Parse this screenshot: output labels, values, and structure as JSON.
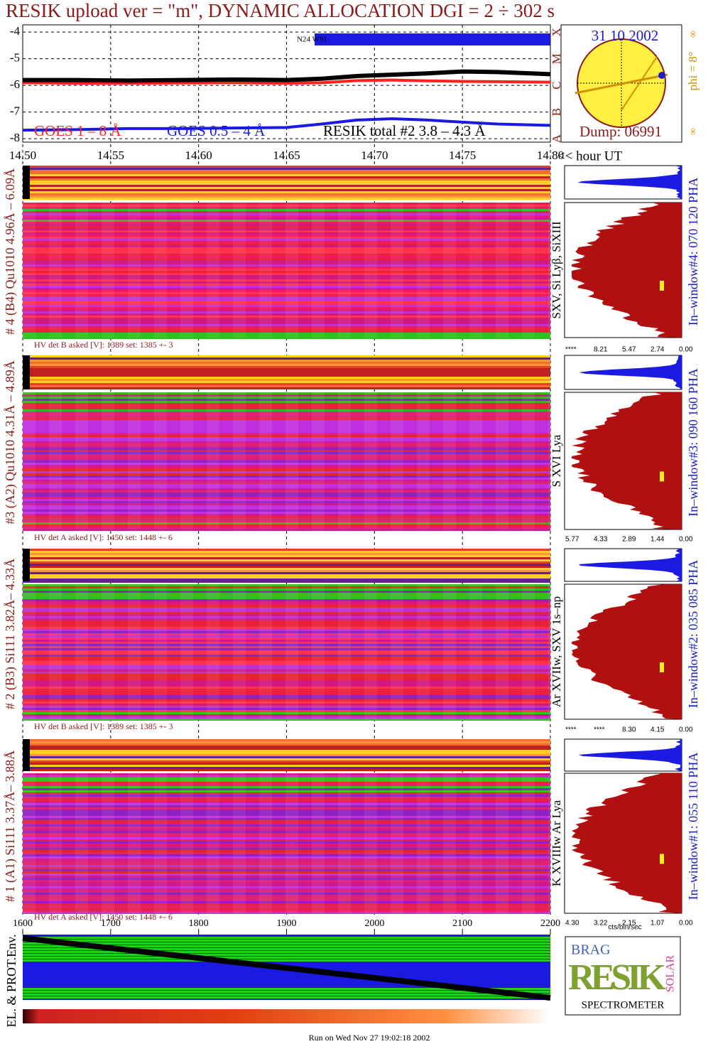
{
  "title": "RESIK upload ver = \"m\", DYNAMIC ALLOCATION  DGI =   2 ÷ 302 s",
  "goes_plot": {
    "xlim": [
      14.5,
      14.8
    ],
    "xticks": [
      {
        "value": 14.5,
        "label": "14.50"
      },
      14.55,
      {
        "value": 14.6,
        "label": "14.60"
      },
      14.65,
      {
        "value": 14.7,
        "label": "14.70"
      },
      14.75,
      {
        "value": 14.8,
        "label": "14.80"
      }
    ],
    "x_label": "<< hour UT",
    "ylim": [
      -8.13,
      -3.73
    ],
    "yticks": [
      -4,
      -5,
      -6,
      -7,
      -8
    ],
    "class_letters": [
      "A",
      "B",
      "C",
      "M",
      "X"
    ],
    "annotation": "N24 W91",
    "x": [
      14.5,
      14.53,
      14.56,
      14.59,
      14.62,
      14.65,
      14.67,
      14.69,
      14.71,
      14.73,
      14.75,
      14.77,
      14.8
    ],
    "series": [
      {
        "name": "GOES 1 – 8 Å",
        "color": "#ff2020",
        "values": [
          -5.9,
          -5.92,
          -5.92,
          -5.91,
          -5.9,
          -5.92,
          -5.9,
          -5.82,
          -5.8,
          -5.83,
          -5.85,
          -5.86,
          -5.88
        ]
      },
      {
        "name": "GOES 0.5 – 4 Å",
        "color": "#1a1ae0",
        "values": [
          -7.68,
          -7.66,
          -7.62,
          -7.62,
          -7.6,
          -7.58,
          -7.45,
          -7.3,
          -7.25,
          -7.3,
          -7.38,
          -7.45,
          -7.5
        ]
      },
      {
        "name": "RESIK total #2  3.8 – 4.3 Å",
        "color": "#000000",
        "values": [
          -5.8,
          -5.8,
          -5.82,
          -5.8,
          -5.78,
          -5.8,
          -5.75,
          -5.65,
          -5.6,
          -5.55,
          -5.48,
          -5.5,
          -5.58
        ]
      }
    ]
  },
  "sun": {
    "date": "31 10 2002",
    "dump": "Dump: 06991",
    "phi": "phi =  8°",
    "marks": [
      "∞",
      "∞"
    ]
  },
  "detectors": [
    {
      "label": "# 4 (B4) Qu1010 4.96Å – 6.09Å",
      "lines": "SXV, Si Lyβ, SiXIII",
      "window": "In–window#4:  070 120 PHA",
      "hv": "HV det B asked [V]:  1389 set:  1385 +-    3",
      "hist_ticks": [
        "****",
        "8.21",
        "5.47",
        "2.74",
        "0.00"
      ]
    },
    {
      "label": "#3 (A2) Qu1010  4.31Å – 4.89Å",
      "lines": "S XVI Lya",
      "window": "In–window#3:  090 160 PHA",
      "hv": "HV det A asked [V]:  1450 set:  1448 +-    6",
      "hist_ticks": [
        "5.77",
        "4.33",
        "2.89",
        "1.44",
        "0.00"
      ]
    },
    {
      "label": "# 2 (B3) Si111  3.82Å– 4.33Å",
      "lines": "Ar XVIIw,  SXV 1s–np",
      "window": "In–window#2:  035 085 PHA",
      "hv": "HV det B asked [V]:  1389 set:  1385 +-    3",
      "hist_ticks": [
        "****",
        "****",
        "8.30",
        "4.15",
        "0.00"
      ]
    },
    {
      "label": "# 1 (A1) Si111  3.37Å– 3.88Å",
      "lines": "K XVIIIw  Ar Lya",
      "window": "In–window#1:  055 110 PHA",
      "hv": "HV det A asked [V]:  1450 set:  1448 +-    6",
      "hist_ticks": [
        "4.30",
        "3.22",
        "2.15",
        "1.07",
        "0.00"
      ]
    }
  ],
  "hist_unit": "cts/bin/sec",
  "env": {
    "label": "EL. & PROT.Env.",
    "xlim": [
      1600,
      2200
    ],
    "xticks": [
      1600,
      1700,
      1800,
      1900,
      2000,
      2100,
      2200
    ]
  },
  "logo": {
    "brag": "BRAG",
    "resik": "RESIK",
    "solar": "SOLAR",
    "spectrometer": "SPECTROMETER"
  },
  "footer": "Run on Wed Nov 27 19:02:18 2002"
}
